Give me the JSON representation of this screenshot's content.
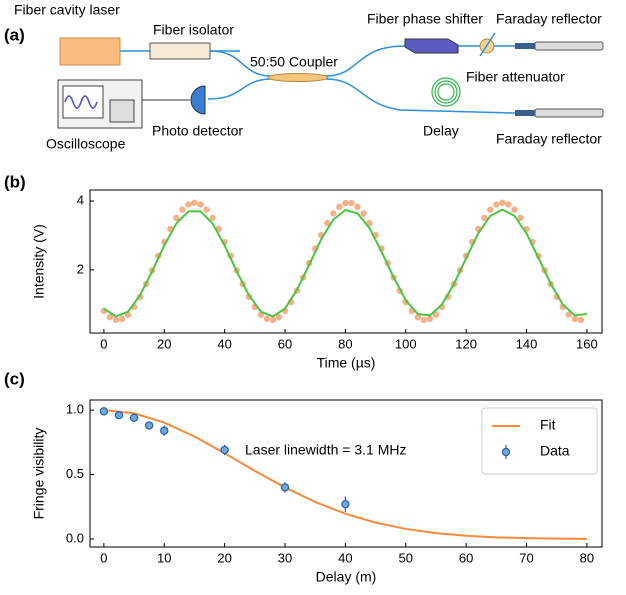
{
  "diagram": {
    "panel_label": "(a)",
    "components": [
      "Fiber cavity laser",
      "Fiber isolator",
      "50:50 Coupler",
      "Fiber phase shifter",
      "Faraday reflector",
      "Fiber attenuator",
      "Oscilloscope",
      "Photo detector",
      "Delay",
      "Faraday reflector"
    ]
  },
  "chart_data": [
    {
      "type": "scatter",
      "panel_label": "(b)",
      "x_label": "Time (µs)",
      "y_label": "Intensity (V)",
      "xlim": [
        -4.6,
        165
      ],
      "ylim": [
        0.17,
        4.32
      ],
      "xticks": [
        0,
        20,
        40,
        60,
        80,
        100,
        120,
        140,
        160
      ],
      "yticks": [
        2,
        4
      ],
      "series": [
        {
          "style": "markers",
          "color": "#f5a77c",
          "x": [
            0,
            2,
            4,
            6,
            8,
            10,
            12,
            14,
            16,
            18,
            20,
            22,
            24,
            26,
            28,
            30,
            32,
            34,
            36,
            38,
            40,
            42,
            44,
            46,
            48,
            50,
            52,
            54,
            56,
            58,
            60,
            62,
            64,
            66,
            68,
            70,
            72,
            74,
            76,
            78,
            80,
            82,
            84,
            86,
            88,
            90,
            92,
            94,
            96,
            98,
            100,
            102,
            104,
            106,
            108,
            110,
            112,
            114,
            116,
            118,
            120,
            122,
            124,
            126,
            128,
            130,
            132,
            134,
            136,
            138,
            140,
            142,
            144,
            146,
            148,
            150,
            152,
            154,
            156,
            158
          ],
          "values": [
            0.81,
            0.63,
            0.55,
            0.58,
            0.7,
            0.93,
            1.22,
            1.59,
            1.99,
            2.41,
            2.81,
            3.19,
            3.51,
            3.75,
            3.9,
            3.95,
            3.9,
            3.75,
            3.51,
            3.19,
            2.81,
            2.41,
            1.99,
            1.59,
            1.22,
            0.93,
            0.7,
            0.58,
            0.55,
            0.63,
            0.81,
            1.07,
            1.4,
            1.78,
            2.2,
            2.62,
            3.01,
            3.36,
            3.64,
            3.83,
            3.94,
            3.94,
            3.83,
            3.64,
            3.36,
            3.01,
            2.62,
            2.2,
            1.78,
            1.4,
            1.07,
            0.81,
            0.63,
            0.55,
            0.58,
            0.7,
            0.93,
            1.22,
            1.59,
            1.99,
            2.41,
            2.81,
            3.19,
            3.51,
            3.75,
            3.9,
            3.95,
            3.9,
            3.75,
            3.51,
            3.19,
            2.81,
            2.41,
            1.99,
            1.59,
            1.22,
            0.93,
            0.7,
            0.58,
            0.55
          ]
        },
        {
          "style": "line",
          "color": "#4cc540",
          "x": [
            0,
            4,
            8,
            12,
            16,
            20,
            24,
            28,
            32,
            36,
            40,
            44,
            48,
            52,
            56,
            60,
            64,
            68,
            72,
            76,
            80,
            84,
            88,
            92,
            96,
            100,
            104,
            108,
            112,
            116,
            120,
            124,
            128,
            132,
            136,
            140,
            144,
            148,
            152,
            156,
            160
          ],
          "values": [
            0.88,
            0.65,
            0.79,
            1.27,
            1.96,
            2.71,
            3.35,
            3.7,
            3.7,
            3.35,
            2.71,
            1.96,
            1.27,
            0.79,
            0.65,
            0.88,
            1.43,
            2.15,
            2.89,
            3.46,
            3.74,
            3.64,
            3.21,
            2.53,
            1.78,
            1.12,
            0.72,
            0.68,
            1.0,
            1.6,
            2.34,
            3.06,
            3.57,
            3.75,
            3.57,
            3.06,
            2.34,
            1.6,
            1.0,
            0.68,
            0.72
          ]
        }
      ]
    },
    {
      "type": "scatter",
      "panel_label": "(c)",
      "x_label": "Delay (m)",
      "y_label": "Fringe visibility",
      "xlim": [
        -2.3,
        82.5
      ],
      "ylim": [
        -0.062,
        1.078
      ],
      "xticks": [
        0,
        10,
        20,
        30,
        40,
        50,
        60,
        70,
        80
      ],
      "yticks": [
        {
          "value": 0,
          "label": "0.0"
        },
        {
          "value": 0.5,
          "label": "0.5"
        },
        {
          "value": 1,
          "label": "1.0"
        }
      ],
      "annotation": "Laser linewidth = 3.1 MHz",
      "legend": "upper right",
      "series": [
        {
          "name": "Fit",
          "style": "line",
          "color": "#f58b3c",
          "x": [
            0,
            5,
            10,
            15,
            20,
            25,
            30,
            35,
            40,
            45,
            50,
            55,
            60,
            65,
            70,
            75,
            80
          ],
          "values": [
            1.0,
            0.975,
            0.903,
            0.795,
            0.665,
            0.528,
            0.4,
            0.287,
            0.196,
            0.127,
            0.078,
            0.046,
            0.025,
            0.013,
            0.007,
            0.003,
            0.001
          ]
        },
        {
          "name": "Data",
          "style": "errorbar",
          "color": "#6fa8dc",
          "x": [
            0,
            2.5,
            5,
            7.5,
            10,
            20,
            30,
            40
          ],
          "values": [
            0.99,
            0.96,
            0.94,
            0.88,
            0.84,
            0.69,
            0.4,
            0.27
          ],
          "errors": [
            0.01,
            0.01,
            0.01,
            0.02,
            0.04,
            0.04,
            0.04,
            0.06
          ]
        }
      ]
    }
  ]
}
